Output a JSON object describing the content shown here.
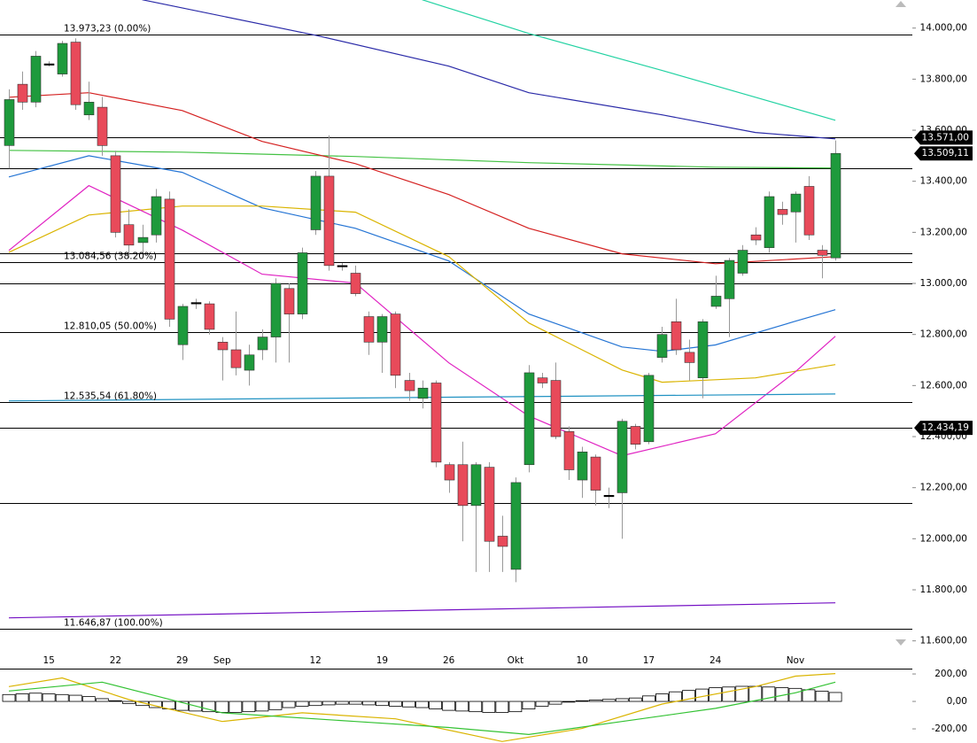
{
  "chart_data": [
    {
      "type": "candlestick",
      "categories": [
        null,
        null,
        null,
        "15",
        null,
        null,
        null,
        null,
        "22",
        null,
        null,
        null,
        null,
        "29",
        null,
        null,
        "Sep",
        null,
        null,
        null,
        null,
        null,
        null,
        "12",
        null,
        null,
        null,
        null,
        "19",
        null,
        null,
        null,
        null,
        "26",
        null,
        null,
        null,
        null,
        "Okt",
        null,
        null,
        null,
        null,
        "10",
        null,
        null,
        null,
        null,
        "17",
        null,
        null,
        null,
        null,
        "24",
        null,
        null,
        null,
        null,
        null,
        "Nov",
        null,
        null,
        null
      ],
      "open": [
        13540,
        13780,
        13710,
        13860,
        13820,
        13945,
        13660,
        13690,
        13500,
        13230,
        13160,
        13190,
        13330,
        12760,
        12925,
        12920,
        12770,
        12740,
        12660,
        12740,
        12790,
        12980,
        12880,
        13210,
        13420,
        13070,
        13040,
        12870,
        12770,
        12880,
        12620,
        12550,
        12610,
        12290,
        12290,
        12130,
        12280,
        12010,
        11880,
        12290,
        12630,
        12620,
        12420,
        12230,
        12320,
        12170,
        12180,
        12440,
        12380,
        12710,
        12850,
        12730,
        12630,
        12910,
        12940,
        13040,
        13190,
        13140,
        13290,
        13280,
        13380,
        13130,
        13100
      ],
      "high": [
        13760,
        13830,
        13910,
        13870,
        13950,
        13960,
        13790,
        13730,
        13520,
        13290,
        13230,
        13370,
        13360,
        12920,
        12940,
        12930,
        12790,
        12890,
        12760,
        12820,
        13020,
        13000,
        13140,
        13440,
        13580,
        13080,
        13070,
        12890,
        12880,
        12890,
        12650,
        12620,
        12620,
        12300,
        12380,
        12300,
        12300,
        12090,
        12240,
        12680,
        12650,
        12690,
        12440,
        12360,
        12330,
        12200,
        12470,
        12450,
        12650,
        12830,
        12940,
        12780,
        12860,
        13030,
        13100,
        13150,
        13220,
        13360,
        13320,
        13360,
        13420,
        13150,
        13560
      ],
      "low": [
        13450,
        13680,
        13690,
        13850,
        13810,
        13680,
        13640,
        13500,
        13180,
        13100,
        13120,
        13160,
        12830,
        12700,
        12900,
        12800,
        12620,
        12640,
        12600,
        12700,
        12690,
        12690,
        12860,
        13190,
        13050,
        13050,
        12950,
        12720,
        12650,
        12590,
        12540,
        12510,
        12280,
        12180,
        11990,
        11870,
        11870,
        11870,
        11830,
        12260,
        12590,
        12390,
        12230,
        12160,
        12130,
        12120,
        12000,
        12350,
        12370,
        12690,
        12720,
        12620,
        12550,
        12900,
        12790,
        13030,
        13150,
        13120,
        13230,
        13160,
        13170,
        13020,
        13090
      ],
      "close": [
        13720,
        13710,
        13890,
        13860,
        13940,
        13700,
        13710,
        13540,
        13200,
        13150,
        13180,
        13340,
        12860,
        12910,
        12925,
        12820,
        12740,
        12670,
        12720,
        12790,
        13000,
        12880,
        13120,
        13420,
        13070,
        13070,
        12960,
        12770,
        12870,
        12640,
        12580,
        12590,
        12300,
        12230,
        12130,
        12290,
        11990,
        11970,
        12220,
        12650,
        12610,
        12400,
        12270,
        12340,
        12190,
        12170,
        12460,
        12370,
        12640,
        12800,
        12740,
        12690,
        12850,
        12950,
        13090,
        13130,
        13170,
        13340,
        13270,
        13350,
        13190,
        13110,
        13509.11
      ],
      "up_color": "#1e9a3c",
      "down_color": "#e84a5a",
      "flat_color": "#000000",
      "ylim": [
        11500,
        14110
      ],
      "yticks": [
        {
          "value": 11600,
          "label": "11.600,00"
        },
        {
          "value": 11800,
          "label": "11.800,00"
        },
        {
          "value": 12000,
          "label": "12.000,00"
        },
        {
          "value": 12200,
          "label": "12.200,00"
        },
        {
          "value": 12400,
          "label": "12.400,00"
        },
        {
          "value": 12600,
          "label": "12.600,00"
        },
        {
          "value": 12800,
          "label": "12.800,00"
        },
        {
          "value": 13000,
          "label": "13.000,00"
        },
        {
          "value": 13200,
          "label": "13.200,00"
        },
        {
          "value": 13400,
          "label": "13.400,00"
        },
        {
          "value": 13600,
          "label": "13.600,00"
        },
        {
          "value": 13800,
          "label": "13.800,00"
        },
        {
          "value": 14000,
          "label": "14.000,00"
        }
      ],
      "levels": [
        {
          "value": 13973.23,
          "label": "13.973,23 (0.00%)"
        },
        {
          "value": 13571
        },
        {
          "value": 13452
        },
        {
          "value": 13119
        },
        {
          "value": 13084.56,
          "label": "13.084,56 (38.20%)"
        },
        {
          "value": 13000
        },
        {
          "value": 12810.05,
          "label": "12.810,05 (50.00%)"
        },
        {
          "value": 12535.54,
          "label": "12.535,54 (61.80%)"
        },
        {
          "value": 12434.19
        },
        {
          "value": 12140
        },
        {
          "value": 11646.87,
          "label": "11.646,87 (100.00%)"
        }
      ],
      "price_tags": [
        {
          "value": 13571,
          "label": "13.571,00"
        },
        {
          "value": 13509.11,
          "label": "13.509,11"
        },
        {
          "value": 12434.19,
          "label": "12.434,19"
        }
      ],
      "overlays": [
        {
          "color": "#2a2aa8",
          "x": [
            10,
            23,
            33,
            39,
            49,
            56,
            62
          ],
          "values": [
            14111,
            13972,
            13851,
            13747,
            13660,
            13591,
            13566
          ]
        },
        {
          "color": "#22d2a2",
          "x": [
            31,
            39,
            49,
            56,
            62
          ],
          "values": [
            14111,
            13979,
            13834,
            13729,
            13639
          ]
        },
        {
          "color": "#44c244",
          "x": [
            0,
            13,
            26,
            39,
            53,
            62
          ],
          "values": [
            13521,
            13514,
            13497,
            13473,
            13455,
            13452
          ]
        },
        {
          "color": "#d42020",
          "x": [
            0,
            6,
            13,
            19,
            26,
            33,
            39,
            46,
            53,
            62
          ],
          "values": [
            13729,
            13747,
            13677,
            13556,
            13469,
            13348,
            13216,
            13116,
            13077,
            13105
          ]
        },
        {
          "color": "#2474d4",
          "x": [
            0,
            6,
            13,
            19,
            26,
            33,
            39,
            46,
            49,
            53,
            59,
            62
          ],
          "values": [
            13417,
            13500,
            13435,
            13296,
            13216,
            13088,
            12880,
            12751,
            12734,
            12759,
            12852,
            12897
          ]
        },
        {
          "color": "#dab400",
          "x": [
            0,
            6,
            13,
            19,
            26,
            33,
            39,
            46,
            49,
            56,
            62
          ],
          "values": [
            13122,
            13268,
            13303,
            13303,
            13279,
            13105,
            12845,
            12661,
            12613,
            12630,
            12682
          ]
        },
        {
          "color": "#e022c2",
          "x": [
            0,
            6,
            13,
            19,
            26,
            33,
            39,
            46,
            53,
            59,
            62
          ],
          "values": [
            13129,
            13383,
            13209,
            13036,
            13001,
            12689,
            12481,
            12325,
            12411,
            12654,
            12793
          ]
        },
        {
          "color": "#2092c2",
          "x": [
            0,
            62
          ],
          "values": [
            12540,
            12567
          ]
        },
        {
          "color": "#7410c4",
          "x": [
            0,
            62
          ],
          "values": [
            11690,
            11749
          ]
        }
      ]
    },
    {
      "type": "bar",
      "values": [
        50,
        55,
        60,
        55,
        50,
        45,
        35,
        20,
        5,
        -15,
        -30,
        -45,
        -55,
        -65,
        -70,
        -75,
        -80,
        -80,
        -75,
        -70,
        -60,
        -45,
        -35,
        -30,
        -25,
        -20,
        -20,
        -25,
        -30,
        -35,
        -40,
        -45,
        -55,
        -65,
        -70,
        -75,
        -80,
        -80,
        -75,
        -55,
        -35,
        -20,
        -5,
        5,
        10,
        15,
        20,
        25,
        40,
        55,
        70,
        80,
        90,
        100,
        105,
        110,
        110,
        105,
        100,
        95,
        85,
        75,
        65
      ],
      "color": "#ffffff",
      "ylim": [
        -303,
        239
      ],
      "yticks": [
        {
          "value": 200,
          "label": "200,00"
        },
        {
          "value": 0,
          "label": "0,00"
        },
        {
          "value": -200,
          "label": "-200,00"
        }
      ],
      "lines": [
        {
          "color": "#dab400",
          "x": [
            0,
            4,
            9,
            16,
            22,
            29,
            37,
            43,
            49,
            56,
            59,
            62
          ],
          "values": [
            108,
            171,
            13,
            -146,
            -83,
            -127,
            -292,
            -197,
            -19,
            108,
            184,
            203
          ]
        },
        {
          "color": "#33c233",
          "x": [
            0,
            7,
            16,
            26,
            33,
            39,
            46,
            53,
            59,
            62
          ],
          "values": [
            76,
            140,
            -83,
            -146,
            -190,
            -241,
            -146,
            -51,
            63,
            140
          ]
        }
      ]
    }
  ]
}
